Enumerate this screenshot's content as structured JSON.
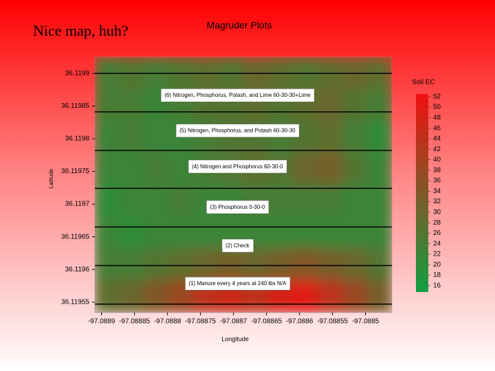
{
  "slide_title": "Nice map, huh?",
  "chart_data": {
    "type": "heatmap",
    "title": "Magruder Plots",
    "x_label": "Longitude",
    "y_label": "Latitude",
    "xlim": [
      -97.08891,
      -97.08846
    ],
    "ylim": [
      36.119534,
      36.119925
    ],
    "xticks": [
      -97.0889,
      -97.08885,
      -97.0888,
      -97.08875,
      -97.0887,
      -97.08865,
      -97.0886,
      -97.08855,
      -97.0885
    ],
    "yticks": [
      36.1199,
      36.11985,
      36.1198,
      36.11975,
      36.1197,
      36.11965,
      36.1196,
      36.11955
    ],
    "z": [
      [
        24,
        26,
        24,
        26,
        28,
        26,
        30,
        28,
        26,
        28,
        30,
        28
      ],
      [
        24,
        24,
        22,
        24,
        26,
        26,
        28,
        26,
        28,
        30,
        26,
        24
      ],
      [
        22,
        24,
        22,
        22,
        24,
        26,
        26,
        24,
        26,
        28,
        24,
        20
      ],
      [
        22,
        22,
        24,
        22,
        24,
        26,
        28,
        26,
        30,
        32,
        26,
        22
      ],
      [
        20,
        22,
        22,
        24,
        22,
        22,
        24,
        24,
        24,
        24,
        22,
        22
      ],
      [
        22,
        20,
        22,
        22,
        22,
        22,
        22,
        22,
        22,
        22,
        22,
        22
      ],
      [
        24,
        24,
        26,
        28,
        30,
        32,
        30,
        32,
        34,
        32,
        30,
        26
      ],
      [
        28,
        30,
        34,
        38,
        44,
        46,
        44,
        48,
        50,
        44,
        38,
        32
      ]
    ],
    "colormap": [
      "#10a040",
      "#f01010"
    ],
    "colorbar_label": "Soil EC",
    "zlim": [
      14.8,
      52.5
    ],
    "zticks": [
      16,
      18,
      20,
      22,
      24,
      26,
      28,
      30,
      32,
      34,
      36,
      38,
      40,
      42,
      44,
      46,
      48,
      50,
      52
    ],
    "plot_boundaries": [
      36.1199,
      36.119841,
      36.119782,
      36.119724,
      36.119665,
      36.119606,
      36.119547
    ],
    "annotations": [
      {
        "label": "(6) Nitrogen, Phosphorus, Potash, and Lime 60-30-30+Lime",
        "lon": -97.088694,
        "lat": 36.119866
      },
      {
        "label": "(5) Nitrogen, Phosphorus, and Potash 60-30-30",
        "lon": -97.088694,
        "lat": 36.119812
      },
      {
        "label": "(4) Nitrogen and Phosphorus 60-30-0",
        "lon": -97.088694,
        "lat": 36.119757
      },
      {
        "label": "(3) Phosphorus 0-30-0",
        "lon": -97.088694,
        "lat": 36.119695
      },
      {
        "label": "(2) Check",
        "lon": -97.088694,
        "lat": 36.119636
      },
      {
        "label": "(1) Manure every 4 years at 240 lbs N/A",
        "lon": -97.088694,
        "lat": 36.119578
      }
    ]
  }
}
